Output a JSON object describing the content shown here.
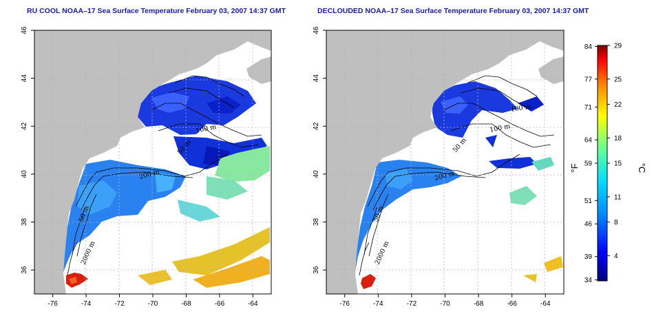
{
  "panels": [
    {
      "title": "RU COOL NOAA–17 Sea Surface Temperature February 03, 2007 14:37 GMT",
      "isobath_labels": [
        "50 m",
        "100 m",
        "200 m",
        "50 m",
        "2000 m"
      ]
    },
    {
      "title": "DECLOUDED NOAA–17 Sea Surface Temperature February 03, 2007 14:37 GMT",
      "isobath_labels": [
        "100 m",
        "100 m",
        "50 m",
        "200 m",
        "50 m",
        "2000 m"
      ]
    }
  ],
  "colors": {
    "land": "#bfbfbf",
    "no_data": "#ffffff",
    "isobath": "#000000",
    "grid": "#b4b4b4"
  },
  "chart_data": [
    {
      "type": "heatmap",
      "title": "RU COOL NOAA–17 Sea Surface Temperature February 03, 2007 14:37 GMT",
      "x_ticks": [
        -76,
        -74,
        -72,
        -70,
        -68,
        -66,
        -64
      ],
      "y_ticks": [
        36,
        38,
        40,
        42,
        44,
        46
      ],
      "xlim": [
        -77.1,
        -62.9
      ],
      "ylim": [
        35,
        46
      ],
      "grid": true
    },
    {
      "type": "heatmap",
      "title": "DECLOUDED NOAA–17 Sea Surface Temperature February 03, 2007 14:37 GMT",
      "x_ticks": [
        -76,
        -74,
        -72,
        -70,
        -68,
        -66,
        -64
      ],
      "y_ticks": [
        36,
        38,
        40,
        42,
        44,
        46
      ],
      "xlim": [
        -77.1,
        -62.9
      ],
      "ylim": [
        35,
        46
      ],
      "grid": true
    }
  ],
  "colorbar": {
    "f_label": "°F",
    "c_label": "°C",
    "f_ticks": [
      "84",
      "77",
      "71",
      "64",
      "59",
      "51",
      "46",
      "39",
      "34"
    ],
    "c_ticks": [
      "29",
      "25",
      "22",
      "18",
      "15",
      "11",
      "8",
      "4"
    ],
    "range_c": [
      1,
      29
    ],
    "stops": [
      "#000080",
      "#0000ff",
      "#0088ff",
      "#00ddff",
      "#66ff99",
      "#ffff00",
      "#ff8800",
      "#ff0000",
      "#800000"
    ]
  }
}
